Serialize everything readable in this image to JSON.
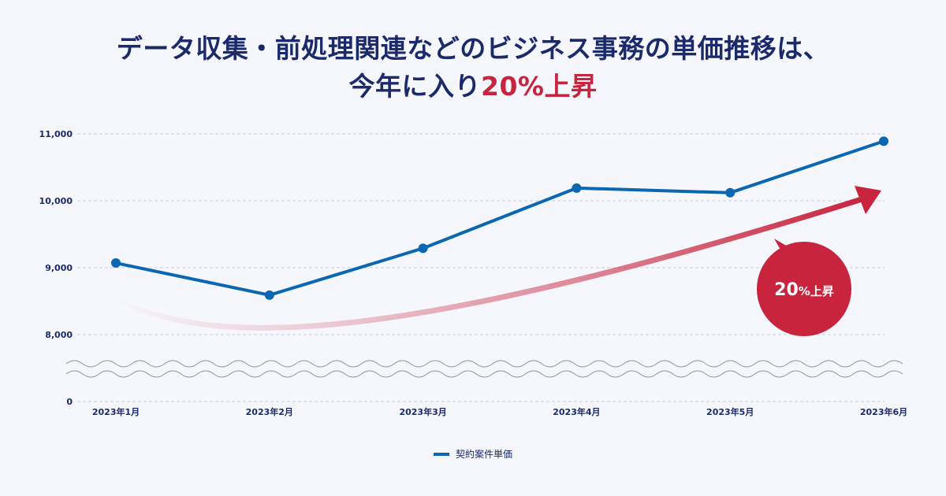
{
  "header": {
    "title_line1": "データ収集・前処理関連などのビジネス事務の単価推移は、",
    "title_line2_prefix": "今年に入り",
    "title_line2_accent": "20%上昇"
  },
  "badge": {
    "percent": "20",
    "percent_sign": "%",
    "text": "上昇"
  },
  "colors": {
    "line": "#0b67b2",
    "accent": "#c8243e",
    "text": "#1b2a6b",
    "grid": "#c9cedb"
  },
  "chart_data": {
    "type": "line",
    "title": "データ収集・前処理関連などのビジネス事務の単価推移は、今年に入り20%上昇",
    "categories": [
      "2023年1月",
      "2023年2月",
      "2023年3月",
      "2023年4月",
      "2023年5月",
      "2023年6月"
    ],
    "series": [
      {
        "name": "契約案件単価",
        "values": [
          9070,
          8590,
          9290,
          10190,
          10120,
          10890
        ]
      }
    ],
    "y_ticks": [
      {
        "value": 8000,
        "label": "8,000"
      },
      {
        "value": 9000,
        "label": "9,000"
      },
      {
        "value": 10000,
        "label": "10,000"
      },
      {
        "value": 11000,
        "label": "11,000"
      }
    ],
    "y_zero_label": "0",
    "ylim": [
      8000,
      11000
    ],
    "axis_break": true,
    "grid": true,
    "legend_position": "bottom",
    "xlabel": "",
    "ylabel": ""
  }
}
